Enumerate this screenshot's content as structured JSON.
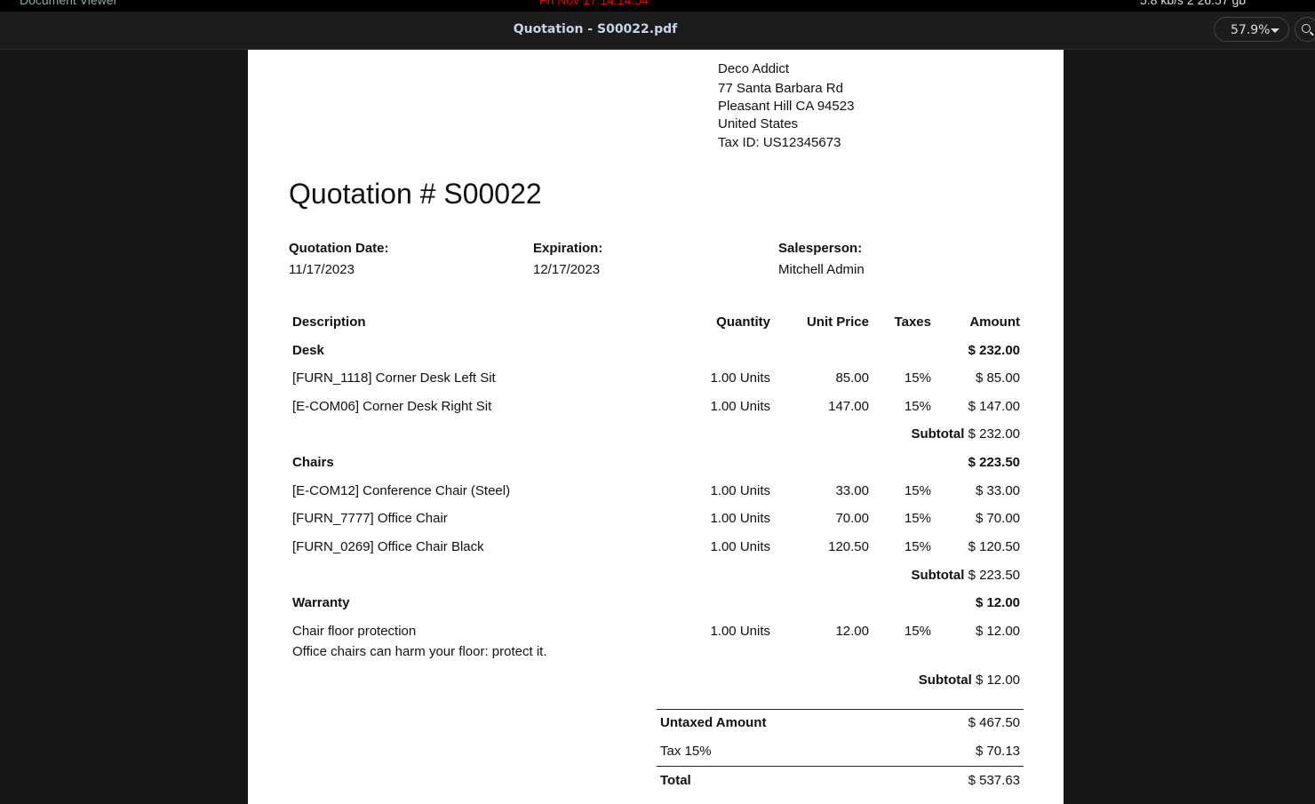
{
  "system_bar": {
    "app": "Document Viewer",
    "clock": "Fri Nov 17  14:14:54",
    "net": "5.8 kb/s  2   26.57 gb"
  },
  "header": {
    "title": "Quotation - S00022.pdf",
    "zoom": "57.9%"
  },
  "doc": {
    "address": [
      "Deco Addict",
      "77 Santa Barbara Rd",
      "Pleasant Hill CA 94523",
      "United States",
      "Tax ID: US12345673"
    ],
    "heading": "Quotation # S00022",
    "info": [
      {
        "label": "Quotation Date:",
        "value": "11/17/2023"
      },
      {
        "label": "Expiration:",
        "value": "12/17/2023"
      },
      {
        "label": "Salesperson:",
        "value": "Mitchell Admin"
      }
    ],
    "columns": [
      "Description",
      "Quantity",
      "Unit Price",
      "Taxes",
      "Amount"
    ],
    "rows": [
      {
        "type": "section",
        "desc": "Desk",
        "amount": "$ 232.00"
      },
      {
        "type": "line",
        "desc": "[FURN_1118] Corner Desk Left Sit",
        "qty": "1.00 Units",
        "price": "85.00",
        "tax": "15%",
        "amount": "$ 85.00"
      },
      {
        "type": "line",
        "desc": "[E-COM06] Corner Desk Right Sit",
        "qty": "1.00 Units",
        "price": "147.00",
        "tax": "15%",
        "amount": "$ 147.00"
      },
      {
        "type": "subtotal",
        "label": "Subtotal",
        "amount": "$ 232.00"
      },
      {
        "type": "section",
        "desc": "Chairs",
        "amount": "$ 223.50"
      },
      {
        "type": "line",
        "desc": "[E-COM12] Conference Chair (Steel)",
        "qty": "1.00 Units",
        "price": "33.00",
        "tax": "15%",
        "amount": "$ 33.00"
      },
      {
        "type": "line",
        "desc": "[FURN_7777] Office Chair",
        "qty": "1.00 Units",
        "price": "70.00",
        "tax": "15%",
        "amount": "$ 70.00"
      },
      {
        "type": "line",
        "desc": "[FURN_0269] Office Chair Black",
        "qty": "1.00 Units",
        "price": "120.50",
        "tax": "15%",
        "amount": "$ 120.50"
      },
      {
        "type": "subtotal",
        "label": "Subtotal",
        "amount": "$ 223.50"
      },
      {
        "type": "section",
        "desc": "Warranty",
        "amount": "$ 12.00"
      },
      {
        "type": "line",
        "desc": "Chair floor protection",
        "note": "Office chairs can harm your floor: protect it.",
        "qty": "1.00 Units",
        "price": "12.00",
        "tax": "15%",
        "amount": "$ 12.00"
      },
      {
        "type": "subtotal",
        "label": "Subtotal",
        "amount": "$ 12.00"
      }
    ],
    "totals": [
      {
        "label": "Untaxed Amount",
        "value": "$ 467.50"
      },
      {
        "label": "Tax 15%",
        "value": "$ 70.13"
      },
      {
        "label": "Total",
        "value": "$ 537.63"
      }
    ]
  }
}
